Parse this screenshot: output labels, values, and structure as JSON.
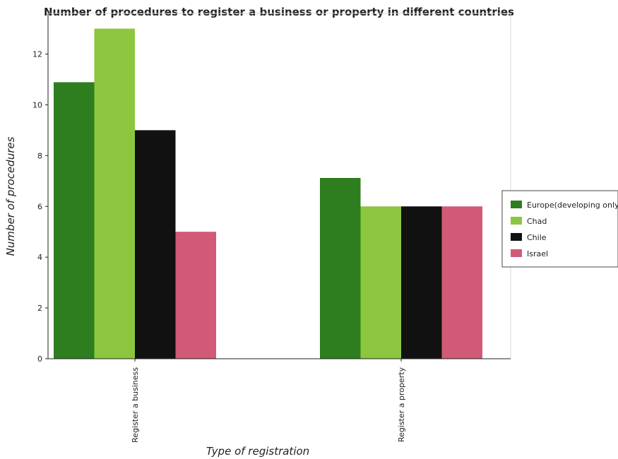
{
  "chart_data": {
    "type": "bar",
    "title": "Number of procedures to register a business or property in different countries",
    "xlabel": "Type of registration",
    "ylabel": "Number of procedures",
    "categories": [
      "Register a business",
      "Register a property"
    ],
    "series": [
      {
        "name": "Europe(developing only)",
        "color": "#2e7d1e",
        "values": [
          10.89,
          7.12
        ]
      },
      {
        "name": "Chad",
        "color": "#8cc63f",
        "values": [
          13,
          6
        ]
      },
      {
        "name": "Chile",
        "color": "#111111",
        "values": [
          9,
          6
        ]
      },
      {
        "name": "Israel",
        "color": "#d05a78",
        "values": [
          5,
          6
        ]
      }
    ],
    "yticks": [
      "0",
      "2",
      "4",
      "6",
      "8",
      "10",
      "12"
    ],
    "ylim": [
      0,
      13.6
    ],
    "grid": false,
    "legend_position": "right"
  }
}
